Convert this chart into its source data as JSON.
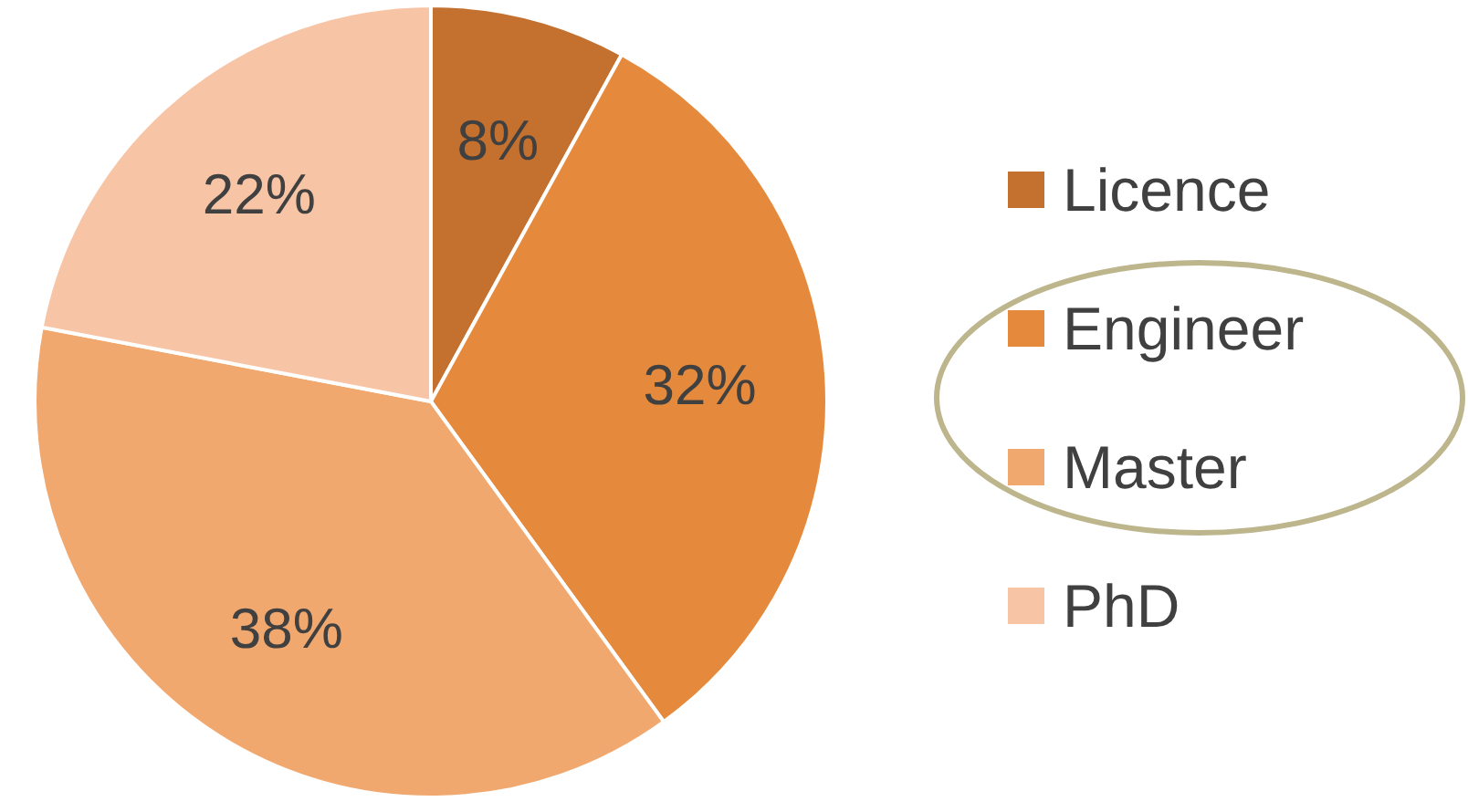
{
  "chart_data": {
    "type": "pie",
    "categories": [
      "Licence",
      "Engineer",
      "Master",
      "PhD"
    ],
    "values": [
      8,
      32,
      38,
      22
    ],
    "colors": [
      "#c4702f",
      "#e58a3c",
      "#f1a86f",
      "#f7c5a6"
    ],
    "value_labels": [
      "8%",
      "32%",
      "38%",
      "22%"
    ],
    "legend": "right"
  }
}
